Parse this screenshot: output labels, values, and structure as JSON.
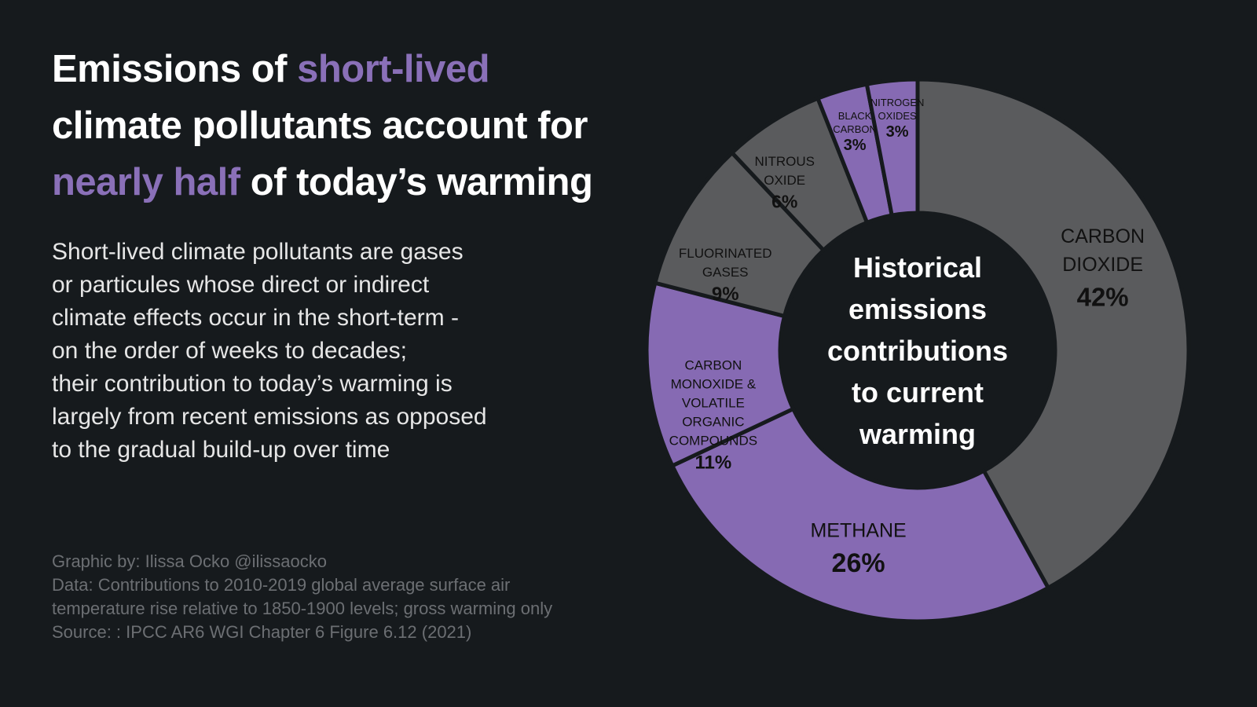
{
  "headline": {
    "part1": "Emissions of ",
    "highlight1": "short-lived",
    "part2": "climate pollutants account for",
    "highlight2": "nearly half",
    "part3": " of today’s warming"
  },
  "description": [
    "Short-lived climate pollutants are gases",
    "or particules whose direct or indirect",
    "climate effects occur in the short-term -",
    "on the order of weeks to decades;",
    "their contribution to today’s warming is",
    "largely from recent emissions as opposed",
    "to the gradual build-up over time"
  ],
  "credits": {
    "graphic": "Graphic by: Ilissa Ocko @ilissaocko",
    "data_line1": "Data: Contributions to 2010-2019 global average surface air",
    "data_line2": "temperature rise relative to 1850-1900 levels; gross warming only",
    "source": "Source: : IPCC AR6 WGI Chapter 6 Figure 6.12 (2021)"
  },
  "colors": {
    "background": "#161a1d",
    "gray": "#5a5b5d",
    "purple": "#866ab3",
    "hole": "#161a1d",
    "text_dark": "#111111",
    "text_light": "#ffffff"
  },
  "chart_data": {
    "type": "pie",
    "center_label": [
      "Historical",
      "emissions",
      "contributions",
      "to current",
      "warming"
    ],
    "slices": [
      {
        "name": [
          "CARBON",
          "DIOXIDE"
        ],
        "value": 42,
        "pct_label": "42%",
        "group": "long-lived"
      },
      {
        "name": [
          "METHANE"
        ],
        "value": 26,
        "pct_label": "26%",
        "group": "short-lived"
      },
      {
        "name": [
          "CARBON",
          "MONOXIDE &",
          "VOLATILE",
          "ORGANIC",
          "COMPOUNDS"
        ],
        "value": 11,
        "pct_label": "11%",
        "group": "short-lived"
      },
      {
        "name": [
          "FLUORINATED",
          "GASES"
        ],
        "value": 9,
        "pct_label": "9%",
        "group": "long-lived"
      },
      {
        "name": [
          "NITROUS",
          "OXIDE"
        ],
        "value": 6,
        "pct_label": "6%",
        "group": "long-lived"
      },
      {
        "name": [
          "BLACK",
          "CARBON"
        ],
        "value": 3,
        "pct_label": "3%",
        "group": "short-lived"
      },
      {
        "name": [
          "NITROGEN",
          "OXIDES"
        ],
        "value": 3,
        "pct_label": "3%",
        "group": "short-lived"
      }
    ]
  }
}
